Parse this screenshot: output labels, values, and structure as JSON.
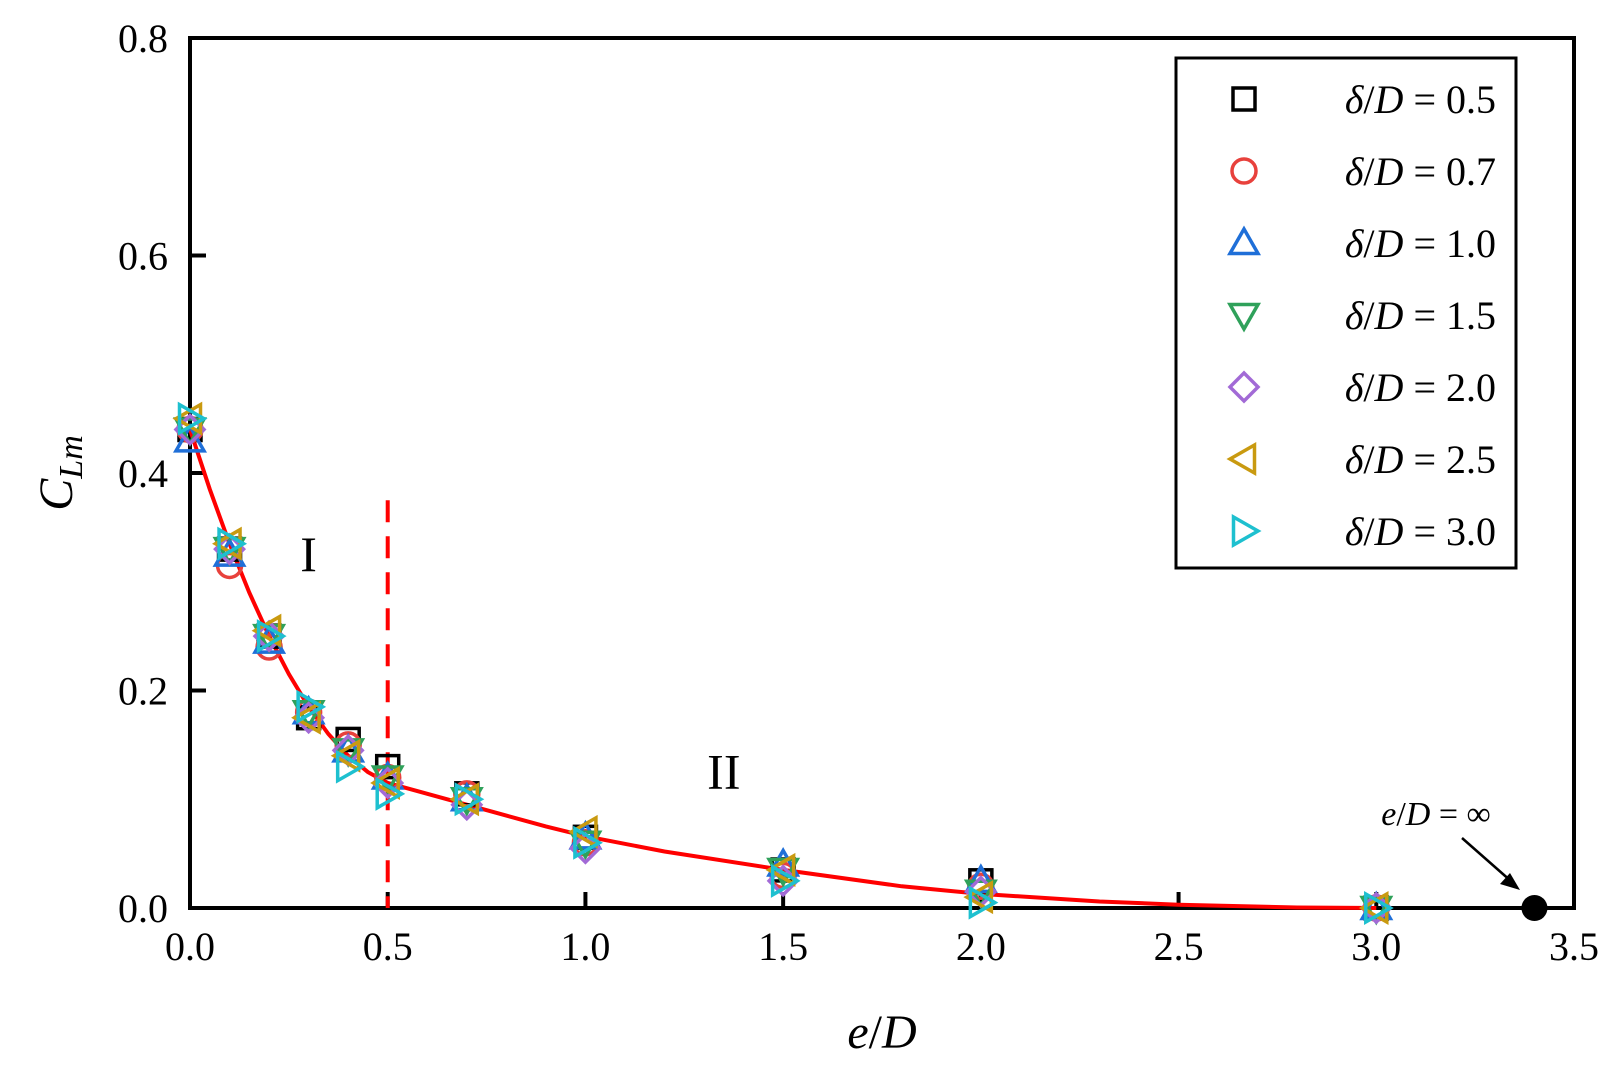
{
  "chart_data": {
    "type": "scatter",
    "xlabel_parts": [
      "e",
      "/",
      "D"
    ],
    "ylabel_main": "C",
    "ylabel_sub": "Lm",
    "xlim": [
      0,
      3.5
    ],
    "ylim": [
      0,
      0.8
    ],
    "xticks": [
      "0.0",
      "0.5",
      "1.0",
      "1.5",
      "2.0",
      "2.5",
      "3.0",
      "3.5"
    ],
    "yticks": [
      "0.0",
      "0.2",
      "0.4",
      "0.6",
      "0.8"
    ],
    "grid": false,
    "legend_position": "top-right",
    "legend_prefix": [
      "δ",
      "/",
      "D"
    ],
    "legend_eq": " = ",
    "series": [
      {
        "name": "δ/D = 0.5",
        "value_label": "0.5",
        "marker": "square",
        "color": "#000000",
        "x": [
          0,
          0.1,
          0.2,
          0.3,
          0.4,
          0.5,
          0.7,
          1.0,
          1.5,
          2.0,
          3.0
        ],
        "y": [
          0.44,
          0.33,
          0.25,
          0.175,
          0.155,
          0.13,
          0.105,
          0.065,
          0.035,
          0.025,
          0.0
        ]
      },
      {
        "name": "δ/D = 0.7",
        "value_label": "0.7",
        "marker": "circle",
        "color": "#e8413c",
        "x": [
          0,
          0.1,
          0.2,
          0.3,
          0.4,
          0.5,
          0.7,
          1.0,
          1.5,
          2.0,
          3.0
        ],
        "y": [
          0.44,
          0.315,
          0.24,
          0.18,
          0.15,
          0.12,
          0.105,
          0.06,
          0.03,
          0.02,
          0.0
        ]
      },
      {
        "name": "δ/D = 1.0",
        "value_label": "1.0",
        "marker": "triangle-up",
        "color": "#1f6fd8",
        "x": [
          0,
          0.1,
          0.2,
          0.3,
          0.4,
          0.5,
          0.7,
          1.0,
          1.5,
          2.0,
          3.0
        ],
        "y": [
          0.43,
          0.325,
          0.245,
          0.18,
          0.145,
          0.12,
          0.1,
          0.065,
          0.04,
          0.025,
          0.0
        ]
      },
      {
        "name": "δ/D = 1.5",
        "value_label": "1.5",
        "marker": "triangle-down",
        "color": "#2fa15a",
        "x": [
          0,
          0.1,
          0.2,
          0.3,
          0.4,
          0.5,
          0.7,
          1.0,
          1.5,
          2.0,
          3.0
        ],
        "y": [
          0.44,
          0.33,
          0.25,
          0.18,
          0.145,
          0.12,
          0.1,
          0.06,
          0.035,
          0.015,
          0.0
        ]
      },
      {
        "name": "δ/D = 2.0",
        "value_label": "2.0",
        "marker": "diamond",
        "color": "#a26ad6",
        "x": [
          0,
          0.1,
          0.2,
          0.3,
          0.4,
          0.5,
          0.7,
          1.0,
          1.5,
          2.0,
          3.0
        ],
        "y": [
          0.44,
          0.33,
          0.25,
          0.175,
          0.145,
          0.115,
          0.095,
          0.055,
          0.025,
          0.015,
          0.0
        ]
      },
      {
        "name": "δ/D = 2.5",
        "value_label": "2.5",
        "marker": "triangle-left",
        "color": "#c99a10",
        "x": [
          0,
          0.1,
          0.2,
          0.3,
          0.4,
          0.5,
          0.7,
          1.0,
          1.5,
          2.0,
          3.0
        ],
        "y": [
          0.45,
          0.335,
          0.255,
          0.175,
          0.14,
          0.115,
          0.1,
          0.07,
          0.035,
          0.01,
          0.0
        ]
      },
      {
        "name": "δ/D = 3.0",
        "value_label": "3.0",
        "marker": "triangle-right",
        "color": "#1ec0cf",
        "x": [
          0,
          0.1,
          0.2,
          0.3,
          0.4,
          0.5,
          0.7,
          1.0,
          1.5,
          2.0,
          3.0
        ],
        "y": [
          0.45,
          0.335,
          0.25,
          0.185,
          0.13,
          0.105,
          0.1,
          0.06,
          0.025,
          0.005,
          0.0
        ]
      }
    ],
    "fit_curve": {
      "color": "#ff0000",
      "x": [
        0,
        0.05,
        0.1,
        0.15,
        0.2,
        0.25,
        0.3,
        0.35,
        0.4,
        0.45,
        0.5,
        0.6,
        0.7,
        0.8,
        0.9,
        1.0,
        1.2,
        1.5,
        1.8,
        2.0,
        2.3,
        2.5,
        2.8,
        3.0
      ],
      "y": [
        0.44,
        0.385,
        0.335,
        0.29,
        0.25,
        0.215,
        0.185,
        0.16,
        0.14,
        0.125,
        0.115,
        0.105,
        0.095,
        0.085,
        0.075,
        0.066,
        0.052,
        0.035,
        0.02,
        0.013,
        0.006,
        0.003,
        0.0005,
        0.0
      ]
    },
    "divider": {
      "x": 0.5,
      "y_top": 0.375,
      "color": "#ff0000"
    },
    "regions": [
      {
        "label": "I",
        "x": 0.3,
        "y": 0.31
      },
      {
        "label": "II",
        "x": 1.35,
        "y": 0.11
      }
    ],
    "infinity_point": {
      "x": 3.4,
      "y": 0.0,
      "label_parts": [
        "e",
        "/",
        "D",
        " = ∞"
      ]
    }
  }
}
